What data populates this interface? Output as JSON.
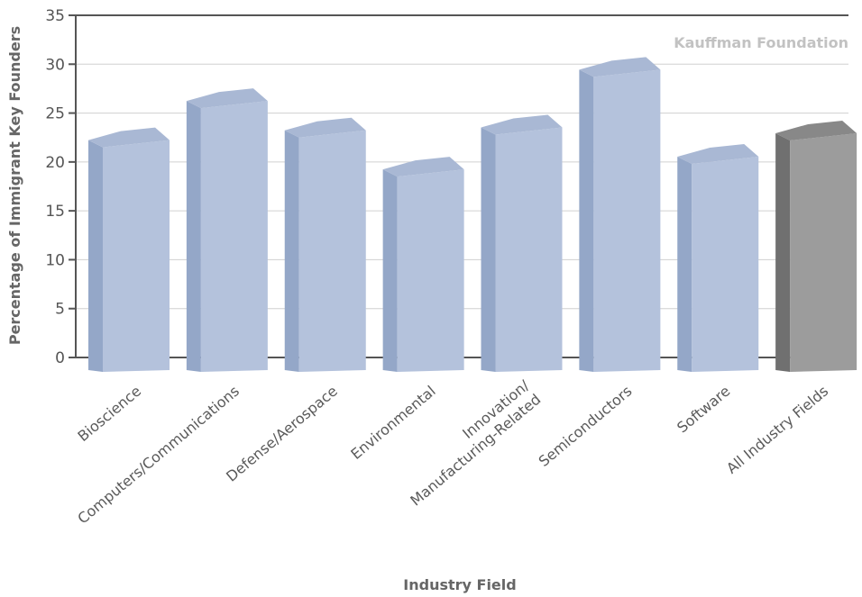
{
  "chart_data": {
    "type": "bar",
    "title": "",
    "xlabel": "Industry Field",
    "ylabel": "Percentage of Immigrant Key Founders",
    "source_label": "Kauffman Foundation",
    "ylim": [
      0,
      35
    ],
    "yticks": [
      0,
      5,
      10,
      15,
      20,
      25,
      30,
      35
    ],
    "grid": true,
    "categories": [
      [
        "Bioscience"
      ],
      [
        "Computers/Communications"
      ],
      [
        "Defense/Aerospace"
      ],
      [
        "Environmental"
      ],
      [
        "Innovation/",
        "Manufacturing-Related"
      ],
      [
        "Semiconductors"
      ],
      [
        "Software"
      ],
      [
        "All Industry Fields"
      ]
    ],
    "values": [
      21.5,
      25.5,
      22.5,
      18.5,
      22.8,
      28.7,
      19.8,
      22.2
    ],
    "colors": {
      "bar_front": "#b4c2dc",
      "bar_side": "#94a7c8",
      "bar_top": "#a9b8d4",
      "highlight_front": "#9c9c9c",
      "highlight_side": "#707070",
      "highlight_top": "#888888",
      "grid": "#d0d0d0",
      "axis": "#555555"
    },
    "highlight_index": 7
  }
}
